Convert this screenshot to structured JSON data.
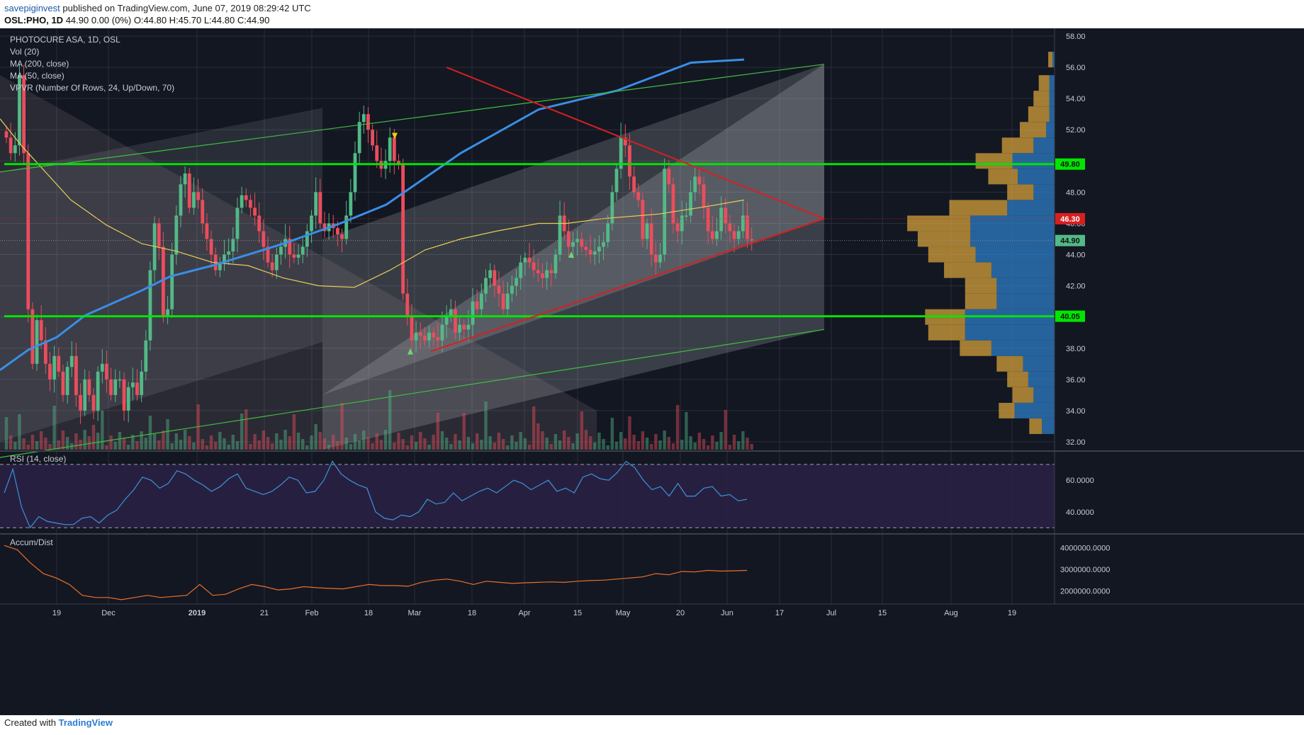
{
  "header": {
    "author": "savepiginvest",
    "published_text": "published on TradingView.com, June 07, 2019 08:29:42 UTC",
    "ticker": "OSL:PHO, 1D",
    "quote": "44.90 0.00 (0%) O:44.80 H:45.70 L:44.80 C:44.90"
  },
  "legend": {
    "title": "PHOTOCURE ASA, 1D, OSL",
    "vol": "Vol (20)",
    "ma200": "MA (200, close)",
    "ma50": "MA (50, close)",
    "vpvr": "VPVR (Number Of Rows, 24, Up/Down, 70)",
    "rsi": "RSI (14, close)",
    "ad": "Accum/Dist"
  },
  "footer": {
    "created_with": "Created with",
    "brand": "TradingView"
  },
  "colors": {
    "bg": "#131722",
    "grid": "#2a2e39",
    "up": "#53b987",
    "down": "#eb4d5c",
    "ma200": "#3a8ee6",
    "ma50": "#e4cf58",
    "support": "#00e600",
    "triangle": "#d62020",
    "channel": "#3fbf3f",
    "rsi": "#3a95d8",
    "rsi_band": "#2a2044",
    "ad": "#e8702a",
    "vpvr_up": "#2e7ec7",
    "vpvr_down": "#d4a03a"
  },
  "chart_data": [
    {
      "type": "candlestick",
      "title": "PHOTOCURE ASA, 1D, OSL",
      "ylim": [
        31.5,
        58.5
      ],
      "y_ticks": [
        "58.00",
        "56.00",
        "54.00",
        "52.00",
        "50.00",
        "48.00",
        "46.00",
        "44.00",
        "42.00",
        "40.00",
        "38.00",
        "36.00",
        "34.00",
        "32.00"
      ],
      "x_ticks": [
        "19",
        "Dec",
        "2019",
        "21",
        "Feb",
        "18",
        "Mar",
        "18",
        "Apr",
        "15",
        "May",
        "20",
        "Jun",
        "17",
        "Jul",
        "15",
        "Aug",
        "19"
      ],
      "price_labels": [
        {
          "value": 49.8,
          "text": "49.80",
          "color": "#00e600"
        },
        {
          "value": 46.3,
          "text": "46.30",
          "color": "#d62020"
        },
        {
          "value": 44.9,
          "text": "44.90",
          "color": "#53b987"
        },
        {
          "value": 40.05,
          "text": "40.05",
          "color": "#00e600"
        }
      ],
      "horizontal_lines": [
        49.8,
        40.05
      ],
      "closes": [
        51.5,
        50.5,
        51.0,
        55.5,
        50.5,
        40.5,
        37.0,
        39.8,
        38.5,
        37.0,
        36.0,
        37.5,
        36.5,
        35.0,
        36.8,
        37.5,
        35.0,
        34.0,
        36.0,
        35.0,
        34.0,
        36.5,
        37.0,
        36.0,
        35.0,
        36.0,
        36.0,
        34.0,
        35.5,
        35.8,
        35.0,
        36.5,
        38.5,
        43.0,
        46.0,
        44.5,
        40.0,
        40.5,
        44.0,
        46.5,
        48.5,
        49.2,
        47.0,
        48.0,
        47.5,
        46.0,
        45.0,
        44.0,
        43.0,
        43.5,
        44.0,
        44.2,
        45.0,
        47.0,
        47.8,
        47.5,
        47.0,
        46.5,
        45.5,
        44.5,
        43.5,
        43.0,
        44.0,
        44.5,
        45.0,
        44.0,
        43.8,
        44.0,
        44.5,
        45.5,
        46.5,
        48.0,
        46.0,
        45.5,
        46.0,
        45.7,
        45.3,
        45.0,
        46.5,
        48.0,
        50.5,
        52.5,
        53.0,
        52.0,
        51.0,
        50.0,
        49.5,
        50.0,
        51.5,
        50.0,
        49.8,
        41.5,
        40.0,
        38.5,
        39.0,
        38.8,
        38.5,
        39.0,
        38.7,
        38.5,
        39.5,
        40.0,
        40.5,
        39.0,
        39.5,
        39.2,
        39.5,
        41.0,
        40.5,
        41.5,
        42.5,
        43.0,
        42.0,
        41.5,
        40.5,
        41.5,
        42.0,
        42.5,
        43.5,
        43.8,
        43.5,
        43.0,
        42.8,
        42.5,
        43.0,
        42.8,
        44.0,
        46.5,
        45.5,
        44.5,
        44.8,
        45.0,
        44.5,
        44.3,
        44.0,
        44.2,
        44.5,
        44.8,
        46.0,
        48.0,
        49.5,
        51.5,
        51.0,
        49.0,
        48.0,
        47.5,
        45.0,
        46.0,
        44.0,
        43.5,
        44.0,
        49.5,
        48.5,
        46.0,
        45.5,
        46.5,
        46.5,
        48.0,
        49.0,
        48.5,
        47.0,
        45.5,
        45.0,
        45.5,
        47.0,
        46.0,
        45.5,
        45.0,
        45.5,
        46.5,
        45.0,
        44.9
      ],
      "ma200": [
        [
          0,
          36.6
        ],
        [
          40,
          37.9
        ],
        [
          80,
          38.7
        ],
        [
          120,
          40.1
        ],
        [
          170,
          41.1
        ],
        [
          200,
          41.7
        ],
        [
          240,
          42.6
        ],
        [
          300,
          43.3
        ],
        [
          400,
          44.7
        ],
        [
          480,
          46.0
        ],
        [
          545,
          47.2
        ],
        [
          650,
          50.5
        ],
        [
          760,
          53.3
        ],
        [
          870,
          54.5
        ],
        [
          975,
          56.3
        ],
        [
          1050,
          56.5
        ]
      ],
      "ma50": [
        [
          0,
          52.7
        ],
        [
          30,
          51.0
        ],
        [
          60,
          49.5
        ],
        [
          100,
          47.5
        ],
        [
          150,
          45.9
        ],
        [
          200,
          44.7
        ],
        [
          250,
          44.2
        ],
        [
          300,
          43.5
        ],
        [
          350,
          43.3
        ],
        [
          400,
          42.5
        ],
        [
          450,
          42.0
        ],
        [
          500,
          41.9
        ],
        [
          550,
          43.0
        ],
        [
          600,
          44.3
        ],
        [
          650,
          45.0
        ],
        [
          700,
          45.5
        ],
        [
          760,
          46.0
        ],
        [
          800,
          46.0
        ],
        [
          850,
          46.3
        ],
        [
          930,
          46.6
        ],
        [
          1000,
          47.1
        ],
        [
          1050,
          47.5
        ]
      ],
      "triangle": {
        "upper": [
          [
            630,
            56.0
          ],
          [
            1163,
            46.3
          ]
        ],
        "lower": [
          [
            608,
            37.8
          ],
          [
            1163,
            46.3
          ]
        ]
      },
      "channel": {
        "upper": [
          [
            0,
            49.3
          ],
          [
            1163,
            56.2
          ]
        ],
        "lower": [
          [
            0,
            31.0
          ],
          [
            1163,
            39.2
          ]
        ]
      },
      "volume_label": "Vol (20)",
      "vpvr_rows": [
        {
          "price": 56.5,
          "up": 0.04,
          "down": 0.02
        },
        {
          "price": 55.0,
          "up": 0.1,
          "down": 0.05
        },
        {
          "price": 54.0,
          "up": 0.15,
          "down": 0.05
        },
        {
          "price": 53.0,
          "up": 0.2,
          "down": 0.05
        },
        {
          "price": 52.0,
          "up": 0.25,
          "down": 0.08
        },
        {
          "price": 51.0,
          "up": 0.3,
          "down": 0.2
        },
        {
          "price": 50.0,
          "up": 0.35,
          "down": 0.4
        },
        {
          "price": 49.0,
          "up": 0.28,
          "down": 0.35
        },
        {
          "price": 48.0,
          "up": 0.25,
          "down": 0.2
        },
        {
          "price": 47.0,
          "up": 0.55,
          "down": 0.45
        },
        {
          "price": 46.0,
          "up": 0.6,
          "down": 0.8
        },
        {
          "price": 45.0,
          "up": 0.5,
          "down": 0.8
        },
        {
          "price": 44.0,
          "up": 0.45,
          "down": 0.75
        },
        {
          "price": 43.0,
          "up": 0.45,
          "down": 0.6
        },
        {
          "price": 42.0,
          "up": 0.3,
          "down": 0.55
        },
        {
          "price": 41.0,
          "up": 0.3,
          "down": 0.55
        },
        {
          "price": 40.0,
          "up": 0.38,
          "down": 0.85
        },
        {
          "price": 39.0,
          "up": 0.35,
          "down": 0.85
        },
        {
          "price": 38.0,
          "up": 0.3,
          "down": 0.6
        },
        {
          "price": 37.0,
          "up": 0.25,
          "down": 0.3
        },
        {
          "price": 36.0,
          "up": 0.2,
          "down": 0.25
        },
        {
          "price": 35.0,
          "up": 0.2,
          "down": 0.2
        },
        {
          "price": 34.0,
          "up": 0.15,
          "down": 0.38
        },
        {
          "price": 33.0,
          "up": 0.12,
          "down": 0.12
        }
      ]
    },
    {
      "type": "line",
      "title": "RSI (14, close)",
      "ylim": [
        27,
        78
      ],
      "y_ticks": [
        "60.0000",
        "40.0000"
      ],
      "bands": [
        70,
        30
      ],
      "values": [
        52,
        67,
        43,
        30,
        37,
        34,
        33,
        32,
        32,
        36,
        37,
        33,
        38,
        41,
        48,
        54,
        62,
        60,
        55,
        58,
        66,
        64,
        60,
        57,
        53,
        56,
        61,
        64,
        55,
        53,
        51,
        53,
        57,
        62,
        60,
        52,
        53,
        60,
        72,
        64,
        60,
        57,
        55,
        40,
        36,
        35,
        38,
        37,
        40,
        48,
        45,
        46,
        52,
        47,
        50,
        53,
        55,
        52,
        56,
        60,
        58,
        54,
        57,
        60,
        53,
        55,
        52,
        62,
        64,
        61,
        60,
        65,
        72,
        68,
        60,
        54,
        56,
        50,
        58,
        50,
        50,
        55,
        56,
        50,
        51,
        47,
        48
      ]
    },
    {
      "type": "line",
      "title": "Accum/Dist",
      "ylim": [
        1400000,
        4600000
      ],
      "y_ticks": [
        "4000000.0000",
        "3000000.0000",
        "2000000.0000"
      ],
      "values": [
        4100000,
        3900000,
        3300000,
        2800000,
        2600000,
        2300000,
        1800000,
        1700000,
        1700000,
        1600000,
        1700000,
        1800000,
        1700000,
        1750000,
        1800000,
        2300000,
        1800000,
        1850000,
        2100000,
        2300000,
        2200000,
        2050000,
        2100000,
        2200000,
        2150000,
        2120000,
        2100000,
        2200000,
        2300000,
        2250000,
        2250000,
        2220000,
        2400000,
        2500000,
        2550000,
        2450000,
        2300000,
        2450000,
        2400000,
        2350000,
        2380000,
        2400000,
        2420000,
        2400000,
        2450000,
        2480000,
        2500000,
        2550000,
        2600000,
        2650000,
        2800000,
        2750000,
        2900000,
        2880000,
        2950000,
        2920000,
        2930000,
        2950000
      ]
    }
  ]
}
